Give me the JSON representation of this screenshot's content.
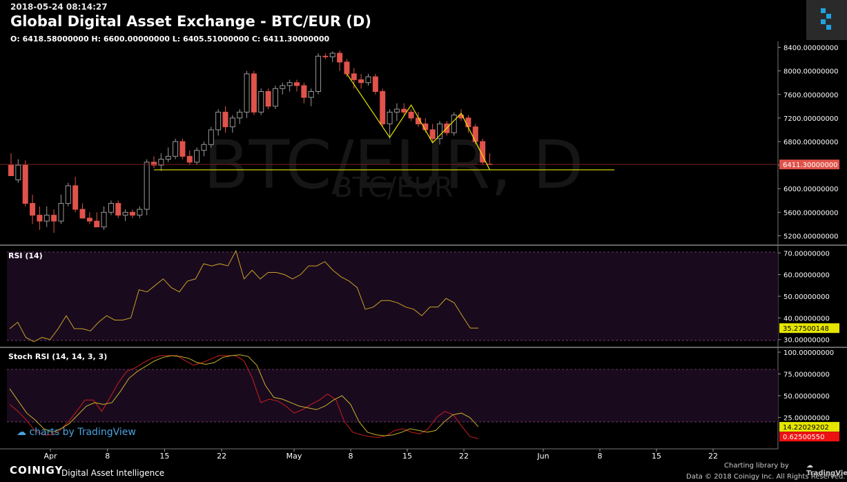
{
  "header": {
    "timestamp": "2018-05-24 08:14:27",
    "title": "Global Digital Asset Exchange - BTC/EUR (D)",
    "ohlc": "O: 6418.58000000 H: 6600.00000000 L: 6405.51000000 C: 6411.30000000"
  },
  "watermark": {
    "main": "BTC/EUR, D",
    "sub": "BTC/EUR"
  },
  "colors": {
    "up": "#000000",
    "up_border": "#9a9a9a",
    "down": "#e0534a",
    "rsi_line": "#c9a227",
    "stoch_k": "#cc1f1f",
    "stoch_d": "#c9b22a",
    "drawing": "#e6e600",
    "price_label_bg": "#e0534a",
    "rsi_label_bg": "#e6e600",
    "pane_band": "#1a0a1e"
  },
  "footer": {
    "brand": "COINIGY",
    "tagline": "Digital Asset Intelligence",
    "charting": "Charting library by",
    "tradingview": "TradingView",
    "copyright": "Data © 2018 Coinigy Inc. All Rights Reserved.",
    "tv_watermark": "charts by TradingView"
  },
  "chart_data": [
    {
      "type": "candlestick",
      "x_ticks": [
        "Apr",
        "8",
        "15",
        "22",
        "May",
        "8",
        "15",
        "22",
        "Jun",
        "8",
        "15",
        "22"
      ],
      "y_ticks": [
        "8400.00000000",
        "8000.00000000",
        "7600.00000000",
        "7200.00000000",
        "6800.00000000",
        "6400.00000000",
        "6000.00000000",
        "5600.00000000",
        "5200.00000000"
      ],
      "ylim": [
        5100,
        8500
      ],
      "last_price": 6411.3,
      "last_price_label": "6411.30000000",
      "candles": [
        [
          6400,
          6600,
          6250,
          6220
        ],
        [
          6150,
          6500,
          6100,
          6400
        ],
        [
          6400,
          6480,
          5700,
          5750
        ],
        [
          5750,
          5900,
          5400,
          5550
        ],
        [
          5550,
          5700,
          5300,
          5450
        ],
        [
          5450,
          5700,
          5350,
          5550
        ],
        [
          5550,
          5650,
          5250,
          5450
        ],
        [
          5450,
          5900,
          5400,
          5750
        ],
        [
          5750,
          6100,
          5700,
          6050
        ],
        [
          6050,
          6200,
          5600,
          5650
        ],
        [
          5650,
          5750,
          5500,
          5500
        ],
        [
          5500,
          5600,
          5400,
          5450
        ],
        [
          5450,
          5600,
          5350,
          5350
        ],
        [
          5350,
          5700,
          5300,
          5600
        ],
        [
          5600,
          5800,
          5550,
          5750
        ],
        [
          5750,
          5800,
          5500,
          5550
        ],
        [
          5550,
          5650,
          5450,
          5600
        ],
        [
          5600,
          5650,
          5500,
          5550
        ],
        [
          5550,
          5700,
          5500,
          5650
        ],
        [
          5650,
          6500,
          5550,
          6450
        ],
        [
          6450,
          6550,
          6350,
          6400
        ],
        [
          6400,
          6600,
          6300,
          6500
        ],
        [
          6500,
          6700,
          6450,
          6550
        ],
        [
          6550,
          6850,
          6500,
          6800
        ],
        [
          6800,
          6850,
          6500,
          6550
        ],
        [
          6550,
          6650,
          6400,
          6450
        ],
        [
          6450,
          6700,
          6400,
          6650
        ],
        [
          6650,
          6800,
          6550,
          6750
        ],
        [
          6750,
          7050,
          6700,
          7000
        ],
        [
          7000,
          7350,
          6900,
          7300
        ],
        [
          7300,
          7400,
          6950,
          7050
        ],
        [
          7050,
          7250,
          6950,
          7200
        ],
        [
          7200,
          7350,
          7100,
          7300
        ],
        [
          7300,
          8000,
          7200,
          7950
        ],
        [
          7950,
          8000,
          7250,
          7300
        ],
        [
          7300,
          7700,
          7250,
          7650
        ],
        [
          7650,
          7700,
          7350,
          7400
        ],
        [
          7400,
          7750,
          7350,
          7700
        ],
        [
          7700,
          7800,
          7600,
          7750
        ],
        [
          7750,
          7850,
          7650,
          7800
        ],
        [
          7800,
          7850,
          7650,
          7750
        ],
        [
          7750,
          7800,
          7450,
          7550
        ],
        [
          7550,
          7700,
          7400,
          7650
        ],
        [
          7650,
          8300,
          7600,
          8250
        ],
        [
          8250,
          8300,
          8200,
          8240
        ],
        [
          8240,
          8330,
          8150,
          8300
        ],
        [
          8300,
          8350,
          8000,
          8150
        ],
        [
          8150,
          8200,
          7900,
          7950
        ],
        [
          7950,
          8050,
          7700,
          7850
        ],
        [
          7850,
          7950,
          7700,
          7800
        ],
        [
          7800,
          7950,
          7750,
          7900
        ],
        [
          7900,
          7950,
          7600,
          7650
        ],
        [
          7650,
          7700,
          7050,
          7100
        ],
        [
          7100,
          7350,
          6850,
          7300
        ],
        [
          7300,
          7450,
          7150,
          7350
        ],
        [
          7350,
          7450,
          7250,
          7300
        ],
        [
          7300,
          7350,
          7150,
          7200
        ],
        [
          7200,
          7300,
          7050,
          7100
        ],
        [
          7100,
          7200,
          6950,
          7000
        ],
        [
          7000,
          7100,
          6800,
          6850
        ],
        [
          6850,
          7150,
          6750,
          7100
        ],
        [
          7100,
          7150,
          6900,
          6950
        ],
        [
          6950,
          7300,
          6900,
          7250
        ],
        [
          7250,
          7350,
          7150,
          7200
        ],
        [
          7200,
          7250,
          6950,
          7050
        ],
        [
          7050,
          7100,
          6750,
          6800
        ],
        [
          6800,
          6850,
          6400,
          6450
        ],
        [
          6418.58,
          6600,
          6405.51,
          6411.3
        ]
      ]
    },
    {
      "type": "line",
      "name": "RSI (14)",
      "y_ticks": [
        "70.00000000",
        "60.00000000",
        "50.00000000",
        "40.00000000",
        "30.00000000"
      ],
      "ylim": [
        28,
        72
      ],
      "last_label": "35.27500148",
      "values": [
        35,
        38,
        31,
        29,
        31,
        30,
        35,
        41,
        35,
        35,
        34,
        38,
        41,
        39,
        39,
        40,
        53,
        52,
        55,
        58,
        54,
        52,
        57,
        58,
        65,
        64,
        65,
        64,
        71,
        58,
        62,
        58,
        61,
        61,
        60,
        58,
        60,
        64,
        64,
        66,
        62,
        59,
        57,
        54,
        44,
        45,
        48,
        48,
        47,
        45,
        44,
        41,
        45,
        45,
        49,
        47,
        41,
        35.3,
        35.275
      ]
    },
    {
      "type": "line",
      "name": "Stoch RSI (14, 14, 3, 3)",
      "y_ticks": [
        "100.00000000",
        "75.00000000",
        "50.00000000",
        "25.00000000"
      ],
      "ylim": [
        0,
        100
      ],
      "k_label": "14.22029202",
      "d_label": "0.62500550",
      "series": [
        {
          "values": [
            40,
            32,
            22,
            10,
            5,
            5,
            10,
            20,
            32,
            45,
            45,
            32,
            48,
            65,
            78,
            82,
            88,
            93,
            96,
            96,
            96,
            90,
            85,
            88,
            92,
            96,
            96,
            96,
            90,
            70,
            42,
            46,
            44,
            38,
            30,
            34,
            40,
            45,
            52,
            45,
            20,
            8,
            5,
            3,
            2,
            4,
            10,
            12,
            8,
            6,
            12,
            25,
            32,
            28,
            15,
            3,
            0.6
          ]
        },
        {
          "values": [
            58,
            44,
            30,
            22,
            12,
            8,
            12,
            18,
            28,
            38,
            42,
            40,
            42,
            55,
            70,
            78,
            84,
            90,
            94,
            96,
            95,
            93,
            88,
            86,
            88,
            94,
            96,
            97,
            95,
            85,
            62,
            48,
            46,
            42,
            38,
            36,
            34,
            38,
            45,
            50,
            40,
            20,
            8,
            5,
            4,
            5,
            8,
            12,
            10,
            8,
            10,
            20,
            28,
            30,
            25,
            14.22
          ]
        }
      ]
    }
  ]
}
